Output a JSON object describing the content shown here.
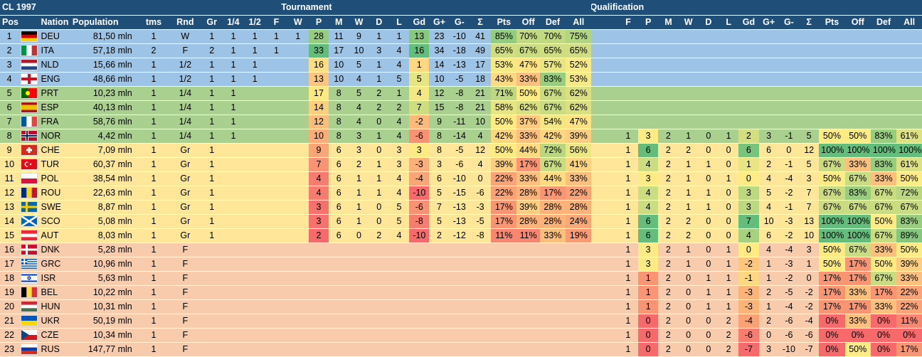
{
  "header": {
    "title": "CL 1997",
    "tournament": "Tournament",
    "qualification": "Qualification",
    "t_cols": [
      "Pos",
      "",
      "Nation",
      "Population",
      "tms",
      "Rnd",
      "Gr",
      "1/4",
      "1/2",
      "F",
      "W",
      "P",
      "M",
      "W",
      "D",
      "L",
      "Gd",
      "G+",
      "G-",
      "Σ",
      "Pts",
      "Off",
      "Def",
      "All"
    ],
    "q_cols": [
      "F",
      "P",
      "M",
      "W",
      "D",
      "L",
      "Gd",
      "G+",
      "G-",
      "Σ",
      "Pts",
      "Off",
      "Def",
      "All"
    ]
  },
  "colors": {
    "header": "#1f4e79",
    "tier_winner": "#9dc3e6",
    "tier_quarter": "#a9d08e",
    "tier_group": "#ffe699",
    "tier_qual": "#f8cbad"
  },
  "rows": [
    {
      "pos": "1",
      "flag": "DEU",
      "nation": "DEU",
      "pop": "81,50 mln",
      "tms": "1",
      "rnd": "W",
      "gr": "1",
      "q4": "1",
      "q2": "1",
      "f": "1",
      "w": "1",
      "p": "28",
      "m": "11",
      "tw": "9",
      "td": "1",
      "tl": "1",
      "gd": "13",
      "gp": "23",
      "gm": "-10",
      "sig": "41",
      "pts": "85%",
      "off": "70%",
      "def": "70%",
      "all": "75%",
      "qf": "",
      "qp": "",
      "qm": "",
      "qw": "",
      "qd": "",
      "ql": "",
      "qgd": "",
      "qgp": "",
      "qgm": "",
      "qsig": "",
      "qpts": "",
      "qoff": "",
      "qdef": "",
      "qall": ""
    },
    {
      "pos": "2",
      "flag": "ITA",
      "nation": "ITA",
      "pop": "57,18 mln",
      "tms": "2",
      "rnd": "F",
      "gr": "2",
      "q4": "1",
      "q2": "1",
      "f": "1",
      "w": "",
      "p": "33",
      "m": "17",
      "tw": "10",
      "td": "3",
      "tl": "4",
      "gd": "16",
      "gp": "34",
      "gm": "-18",
      "sig": "49",
      "pts": "65%",
      "off": "67%",
      "def": "65%",
      "all": "65%",
      "qf": "",
      "qp": "",
      "qm": "",
      "qw": "",
      "qd": "",
      "ql": "",
      "qgd": "",
      "qgp": "",
      "qgm": "",
      "qsig": "",
      "qpts": "",
      "qoff": "",
      "qdef": "",
      "qall": ""
    },
    {
      "pos": "3",
      "flag": "NLD",
      "nation": "NLD",
      "pop": "15,66 mln",
      "tms": "1",
      "rnd": "1/2",
      "gr": "1",
      "q4": "1",
      "q2": "1",
      "f": "",
      "w": "",
      "p": "16",
      "m": "10",
      "tw": "5",
      "td": "1",
      "tl": "4",
      "gd": "1",
      "gp": "14",
      "gm": "-13",
      "sig": "17",
      "pts": "53%",
      "off": "47%",
      "def": "57%",
      "all": "52%",
      "qf": "",
      "qp": "",
      "qm": "",
      "qw": "",
      "qd": "",
      "ql": "",
      "qgd": "",
      "qgp": "",
      "qgm": "",
      "qsig": "",
      "qpts": "",
      "qoff": "",
      "qdef": "",
      "qall": ""
    },
    {
      "pos": "4",
      "flag": "ENG",
      "nation": "ENG",
      "pop": "48,66 mln",
      "tms": "1",
      "rnd": "1/2",
      "gr": "1",
      "q4": "1",
      "q2": "1",
      "f": "",
      "w": "",
      "p": "13",
      "m": "10",
      "tw": "4",
      "td": "1",
      "tl": "5",
      "gd": "5",
      "gp": "10",
      "gm": "-5",
      "sig": "18",
      "pts": "43%",
      "off": "33%",
      "def": "83%",
      "all": "53%",
      "qf": "",
      "qp": "",
      "qm": "",
      "qw": "",
      "qd": "",
      "ql": "",
      "qgd": "",
      "qgp": "",
      "qgm": "",
      "qsig": "",
      "qpts": "",
      "qoff": "",
      "qdef": "",
      "qall": ""
    },
    {
      "pos": "5",
      "flag": "PRT",
      "nation": "PRT",
      "pop": "10,23 mln",
      "tms": "1",
      "rnd": "1/4",
      "gr": "1",
      "q4": "1",
      "q2": "",
      "f": "",
      "w": "",
      "p": "17",
      "m": "8",
      "tw": "5",
      "td": "2",
      "tl": "1",
      "gd": "4",
      "gp": "12",
      "gm": "-8",
      "sig": "21",
      "pts": "71%",
      "off": "50%",
      "def": "67%",
      "all": "62%",
      "qf": "",
      "qp": "",
      "qm": "",
      "qw": "",
      "qd": "",
      "ql": "",
      "qgd": "",
      "qgp": "",
      "qgm": "",
      "qsig": "",
      "qpts": "",
      "qoff": "",
      "qdef": "",
      "qall": ""
    },
    {
      "pos": "6",
      "flag": "ESP",
      "nation": "ESP",
      "pop": "40,13 mln",
      "tms": "1",
      "rnd": "1/4",
      "gr": "1",
      "q4": "1",
      "q2": "",
      "f": "",
      "w": "",
      "p": "14",
      "m": "8",
      "tw": "4",
      "td": "2",
      "tl": "2",
      "gd": "7",
      "gp": "15",
      "gm": "-8",
      "sig": "21",
      "pts": "58%",
      "off": "62%",
      "def": "67%",
      "all": "62%",
      "qf": "",
      "qp": "",
      "qm": "",
      "qw": "",
      "qd": "",
      "ql": "",
      "qgd": "",
      "qgp": "",
      "qgm": "",
      "qsig": "",
      "qpts": "",
      "qoff": "",
      "qdef": "",
      "qall": ""
    },
    {
      "pos": "7",
      "flag": "FRA",
      "nation": "FRA",
      "pop": "58,76 mln",
      "tms": "1",
      "rnd": "1/4",
      "gr": "1",
      "q4": "1",
      "q2": "",
      "f": "",
      "w": "",
      "p": "12",
      "m": "8",
      "tw": "4",
      "td": "0",
      "tl": "4",
      "gd": "-2",
      "gp": "9",
      "gm": "-11",
      "sig": "10",
      "pts": "50%",
      "off": "37%",
      "def": "54%",
      "all": "47%",
      "qf": "",
      "qp": "",
      "qm": "",
      "qw": "",
      "qd": "",
      "ql": "",
      "qgd": "",
      "qgp": "",
      "qgm": "",
      "qsig": "",
      "qpts": "",
      "qoff": "",
      "qdef": "",
      "qall": ""
    },
    {
      "pos": "8",
      "flag": "NOR",
      "nation": "NOR",
      "pop": "4,42 mln",
      "tms": "1",
      "rnd": "1/4",
      "gr": "1",
      "q4": "1",
      "q2": "",
      "f": "",
      "w": "",
      "p": "10",
      "m": "8",
      "tw": "3",
      "td": "1",
      "tl": "4",
      "gd": "-6",
      "gp": "8",
      "gm": "-14",
      "sig": "4",
      "pts": "42%",
      "off": "33%",
      "def": "42%",
      "all": "39%",
      "qf": "1",
      "qp": "3",
      "qm": "2",
      "qw": "1",
      "qd": "0",
      "ql": "1",
      "qgd": "2",
      "qgp": "3",
      "qgm": "-1",
      "qsig": "5",
      "qpts": "50%",
      "qoff": "50%",
      "qdef": "83%",
      "qall": "61%"
    },
    {
      "pos": "9",
      "flag": "CHE",
      "nation": "CHE",
      "pop": "7,09 mln",
      "tms": "1",
      "rnd": "Gr",
      "gr": "1",
      "q4": "",
      "q2": "",
      "f": "",
      "w": "",
      "p": "9",
      "m": "6",
      "tw": "3",
      "td": "0",
      "tl": "3",
      "gd": "3",
      "gp": "8",
      "gm": "-5",
      "sig": "12",
      "pts": "50%",
      "off": "44%",
      "def": "72%",
      "all": "56%",
      "qf": "1",
      "qp": "6",
      "qm": "2",
      "qw": "2",
      "qd": "0",
      "ql": "0",
      "qgd": "6",
      "qgp": "6",
      "qgm": "0",
      "qsig": "12",
      "qpts": "100%",
      "qoff": "100%",
      "qdef": "100%",
      "qall": "100%"
    },
    {
      "pos": "10",
      "flag": "TUR",
      "nation": "TUR",
      "pop": "60,37 mln",
      "tms": "1",
      "rnd": "Gr",
      "gr": "1",
      "q4": "",
      "q2": "",
      "f": "",
      "w": "",
      "p": "7",
      "m": "6",
      "tw": "2",
      "td": "1",
      "tl": "3",
      "gd": "-3",
      "gp": "3",
      "gm": "-6",
      "sig": "4",
      "pts": "39%",
      "off": "17%",
      "def": "67%",
      "all": "41%",
      "qf": "1",
      "qp": "4",
      "qm": "2",
      "qw": "1",
      "qd": "1",
      "ql": "0",
      "qgd": "1",
      "qgp": "2",
      "qgm": "-1",
      "qsig": "5",
      "qpts": "67%",
      "qoff": "33%",
      "qdef": "83%",
      "qall": "61%"
    },
    {
      "pos": "11",
      "flag": "POL",
      "nation": "POL",
      "pop": "38,54 mln",
      "tms": "1",
      "rnd": "Gr",
      "gr": "1",
      "q4": "",
      "q2": "",
      "f": "",
      "w": "",
      "p": "4",
      "m": "6",
      "tw": "1",
      "td": "1",
      "tl": "4",
      "gd": "-4",
      "gp": "6",
      "gm": "-10",
      "sig": "0",
      "pts": "22%",
      "off": "33%",
      "def": "44%",
      "all": "33%",
      "qf": "1",
      "qp": "3",
      "qm": "2",
      "qw": "1",
      "qd": "0",
      "ql": "1",
      "qgd": "0",
      "qgp": "4",
      "qgm": "-4",
      "qsig": "3",
      "qpts": "50%",
      "qoff": "67%",
      "qdef": "33%",
      "qall": "50%"
    },
    {
      "pos": "12",
      "flag": "ROU",
      "nation": "ROU",
      "pop": "22,63 mln",
      "tms": "1",
      "rnd": "Gr",
      "gr": "1",
      "q4": "",
      "q2": "",
      "f": "",
      "w": "",
      "p": "4",
      "m": "6",
      "tw": "1",
      "td": "1",
      "tl": "4",
      "gd": "-10",
      "gp": "5",
      "gm": "-15",
      "sig": "-6",
      "pts": "22%",
      "off": "28%",
      "def": "17%",
      "all": "22%",
      "qf": "1",
      "qp": "4",
      "qm": "2",
      "qw": "1",
      "qd": "1",
      "ql": "0",
      "qgd": "3",
      "qgp": "5",
      "qgm": "-2",
      "qsig": "7",
      "qpts": "67%",
      "qoff": "83%",
      "qdef": "67%",
      "qall": "72%"
    },
    {
      "pos": "13",
      "flag": "SWE",
      "nation": "SWE",
      "pop": "8,87 mln",
      "tms": "1",
      "rnd": "Gr",
      "gr": "1",
      "q4": "",
      "q2": "",
      "f": "",
      "w": "",
      "p": "3",
      "m": "6",
      "tw": "1",
      "td": "0",
      "tl": "5",
      "gd": "-6",
      "gp": "7",
      "gm": "-13",
      "sig": "-3",
      "pts": "17%",
      "off": "39%",
      "def": "28%",
      "all": "28%",
      "qf": "1",
      "qp": "4",
      "qm": "2",
      "qw": "1",
      "qd": "1",
      "ql": "0",
      "qgd": "3",
      "qgp": "4",
      "qgm": "-1",
      "qsig": "7",
      "qpts": "67%",
      "qoff": "67%",
      "qdef": "67%",
      "qall": "67%"
    },
    {
      "pos": "14",
      "flag": "SCO",
      "nation": "SCO",
      "pop": "5,08 mln",
      "tms": "1",
      "rnd": "Gr",
      "gr": "1",
      "q4": "",
      "q2": "",
      "f": "",
      "w": "",
      "p": "3",
      "m": "6",
      "tw": "1",
      "td": "0",
      "tl": "5",
      "gd": "-8",
      "gp": "5",
      "gm": "-13",
      "sig": "-5",
      "pts": "17%",
      "off": "28%",
      "def": "28%",
      "all": "24%",
      "qf": "1",
      "qp": "6",
      "qm": "2",
      "qw": "2",
      "qd": "0",
      "ql": "0",
      "qgd": "7",
      "qgp": "10",
      "qgm": "-3",
      "qsig": "13",
      "qpts": "100%",
      "qoff": "100%",
      "qdef": "50%",
      "qall": "83%"
    },
    {
      "pos": "15",
      "flag": "AUT",
      "nation": "AUT",
      "pop": "8,03 mln",
      "tms": "1",
      "rnd": "Gr",
      "gr": "1",
      "q4": "",
      "q2": "",
      "f": "",
      "w": "",
      "p": "2",
      "m": "6",
      "tw": "0",
      "td": "2",
      "tl": "4",
      "gd": "-10",
      "gp": "2",
      "gm": "-12",
      "sig": "-8",
      "pts": "11%",
      "off": "11%",
      "def": "33%",
      "all": "19%",
      "qf": "1",
      "qp": "6",
      "qm": "2",
      "qw": "2",
      "qd": "0",
      "ql": "0",
      "qgd": "4",
      "qgp": "6",
      "qgm": "-2",
      "qsig": "10",
      "qpts": "100%",
      "qoff": "100%",
      "qdef": "67%",
      "qall": "89%"
    },
    {
      "pos": "16",
      "flag": "DNK",
      "nation": "DNK",
      "pop": "5,28 mln",
      "tms": "1",
      "rnd": "F",
      "gr": "",
      "q4": "",
      "q2": "",
      "f": "",
      "w": "",
      "p": "",
      "m": "",
      "tw": "",
      "td": "",
      "tl": "",
      "gd": "",
      "gp": "",
      "gm": "",
      "sig": "",
      "pts": "",
      "off": "",
      "def": "",
      "all": "",
      "qf": "1",
      "qp": "3",
      "qm": "2",
      "qw": "1",
      "qd": "0",
      "ql": "1",
      "qgd": "0",
      "qgp": "4",
      "qgm": "-4",
      "qsig": "3",
      "qpts": "50%",
      "qoff": "67%",
      "qdef": "33%",
      "qall": "50%"
    },
    {
      "pos": "17",
      "flag": "GRC",
      "nation": "GRC",
      "pop": "10,96 mln",
      "tms": "1",
      "rnd": "F",
      "gr": "",
      "q4": "",
      "q2": "",
      "f": "",
      "w": "",
      "p": "",
      "m": "",
      "tw": "",
      "td": "",
      "tl": "",
      "gd": "",
      "gp": "",
      "gm": "",
      "sig": "",
      "pts": "",
      "off": "",
      "def": "",
      "all": "",
      "qf": "1",
      "qp": "3",
      "qm": "2",
      "qw": "1",
      "qd": "0",
      "ql": "1",
      "qgd": "-2",
      "qgp": "1",
      "qgm": "-3",
      "qsig": "1",
      "qpts": "50%",
      "qoff": "17%",
      "qdef": "50%",
      "qall": "39%"
    },
    {
      "pos": "18",
      "flag": "ISR",
      "nation": "ISR",
      "pop": "5,63 mln",
      "tms": "1",
      "rnd": "F",
      "gr": "",
      "q4": "",
      "q2": "",
      "f": "",
      "w": "",
      "p": "",
      "m": "",
      "tw": "",
      "td": "",
      "tl": "",
      "gd": "",
      "gp": "",
      "gm": "",
      "sig": "",
      "pts": "",
      "off": "",
      "def": "",
      "all": "",
      "qf": "1",
      "qp": "1",
      "qm": "2",
      "qw": "0",
      "qd": "1",
      "ql": "1",
      "qgd": "-1",
      "qgp": "1",
      "qgm": "-2",
      "qsig": "0",
      "qpts": "17%",
      "qoff": "17%",
      "qdef": "67%",
      "qall": "33%"
    },
    {
      "pos": "19",
      "flag": "BEL",
      "nation": "BEL",
      "pop": "10,22 mln",
      "tms": "1",
      "rnd": "F",
      "gr": "",
      "q4": "",
      "q2": "",
      "f": "",
      "w": "",
      "p": "",
      "m": "",
      "tw": "",
      "td": "",
      "tl": "",
      "gd": "",
      "gp": "",
      "gm": "",
      "sig": "",
      "pts": "",
      "off": "",
      "def": "",
      "all": "",
      "qf": "1",
      "qp": "1",
      "qm": "2",
      "qw": "0",
      "qd": "1",
      "ql": "1",
      "qgd": "-3",
      "qgp": "2",
      "qgm": "-5",
      "qsig": "-2",
      "qpts": "17%",
      "qoff": "33%",
      "qdef": "17%",
      "qall": "22%"
    },
    {
      "pos": "20",
      "flag": "HUN",
      "nation": "HUN",
      "pop": "10,31 mln",
      "tms": "1",
      "rnd": "F",
      "gr": "",
      "q4": "",
      "q2": "",
      "f": "",
      "w": "",
      "p": "",
      "m": "",
      "tw": "",
      "td": "",
      "tl": "",
      "gd": "",
      "gp": "",
      "gm": "",
      "sig": "",
      "pts": "",
      "off": "",
      "def": "",
      "all": "",
      "qf": "1",
      "qp": "1",
      "qm": "2",
      "qw": "0",
      "qd": "1",
      "ql": "1",
      "qgd": "-3",
      "qgp": "1",
      "qgm": "-4",
      "qsig": "-2",
      "qpts": "17%",
      "qoff": "17%",
      "qdef": "33%",
      "qall": "22%"
    },
    {
      "pos": "21",
      "flag": "UKR",
      "nation": "UKR",
      "pop": "50,19 mln",
      "tms": "1",
      "rnd": "F",
      "gr": "",
      "q4": "",
      "q2": "",
      "f": "",
      "w": "",
      "p": "",
      "m": "",
      "tw": "",
      "td": "",
      "tl": "",
      "gd": "",
      "gp": "",
      "gm": "",
      "sig": "",
      "pts": "",
      "off": "",
      "def": "",
      "all": "",
      "qf": "1",
      "qp": "0",
      "qm": "2",
      "qw": "0",
      "qd": "0",
      "ql": "2",
      "qgd": "-4",
      "qgp": "2",
      "qgm": "-6",
      "qsig": "-4",
      "qpts": "0%",
      "qoff": "33%",
      "qdef": "0%",
      "qall": "11%"
    },
    {
      "pos": "22",
      "flag": "CZE",
      "nation": "CZE",
      "pop": "10,34 mln",
      "tms": "1",
      "rnd": "F",
      "gr": "",
      "q4": "",
      "q2": "",
      "f": "",
      "w": "",
      "p": "",
      "m": "",
      "tw": "",
      "td": "",
      "tl": "",
      "gd": "",
      "gp": "",
      "gm": "",
      "sig": "",
      "pts": "",
      "off": "",
      "def": "",
      "all": "",
      "qf": "1",
      "qp": "0",
      "qm": "2",
      "qw": "0",
      "qd": "0",
      "ql": "2",
      "qgd": "-6",
      "qgp": "0",
      "qgm": "-6",
      "qsig": "-6",
      "qpts": "0%",
      "qoff": "0%",
      "qdef": "0%",
      "qall": "0%"
    },
    {
      "pos": "23",
      "flag": "RUS",
      "nation": "RUS",
      "pop": "147,77 mln",
      "tms": "1",
      "rnd": "F",
      "gr": "",
      "q4": "",
      "q2": "",
      "f": "",
      "w": "",
      "p": "",
      "m": "",
      "tw": "",
      "td": "",
      "tl": "",
      "gd": "",
      "gp": "",
      "gm": "",
      "sig": "",
      "pts": "",
      "off": "",
      "def": "",
      "all": "",
      "qf": "1",
      "qp": "0",
      "qm": "2",
      "qw": "0",
      "qd": "0",
      "ql": "2",
      "qgd": "-7",
      "qgp": "3",
      "qgm": "-10",
      "qsig": "-7",
      "qpts": "0%",
      "qoff": "50%",
      "qdef": "0%",
      "qall": "17%"
    }
  ]
}
